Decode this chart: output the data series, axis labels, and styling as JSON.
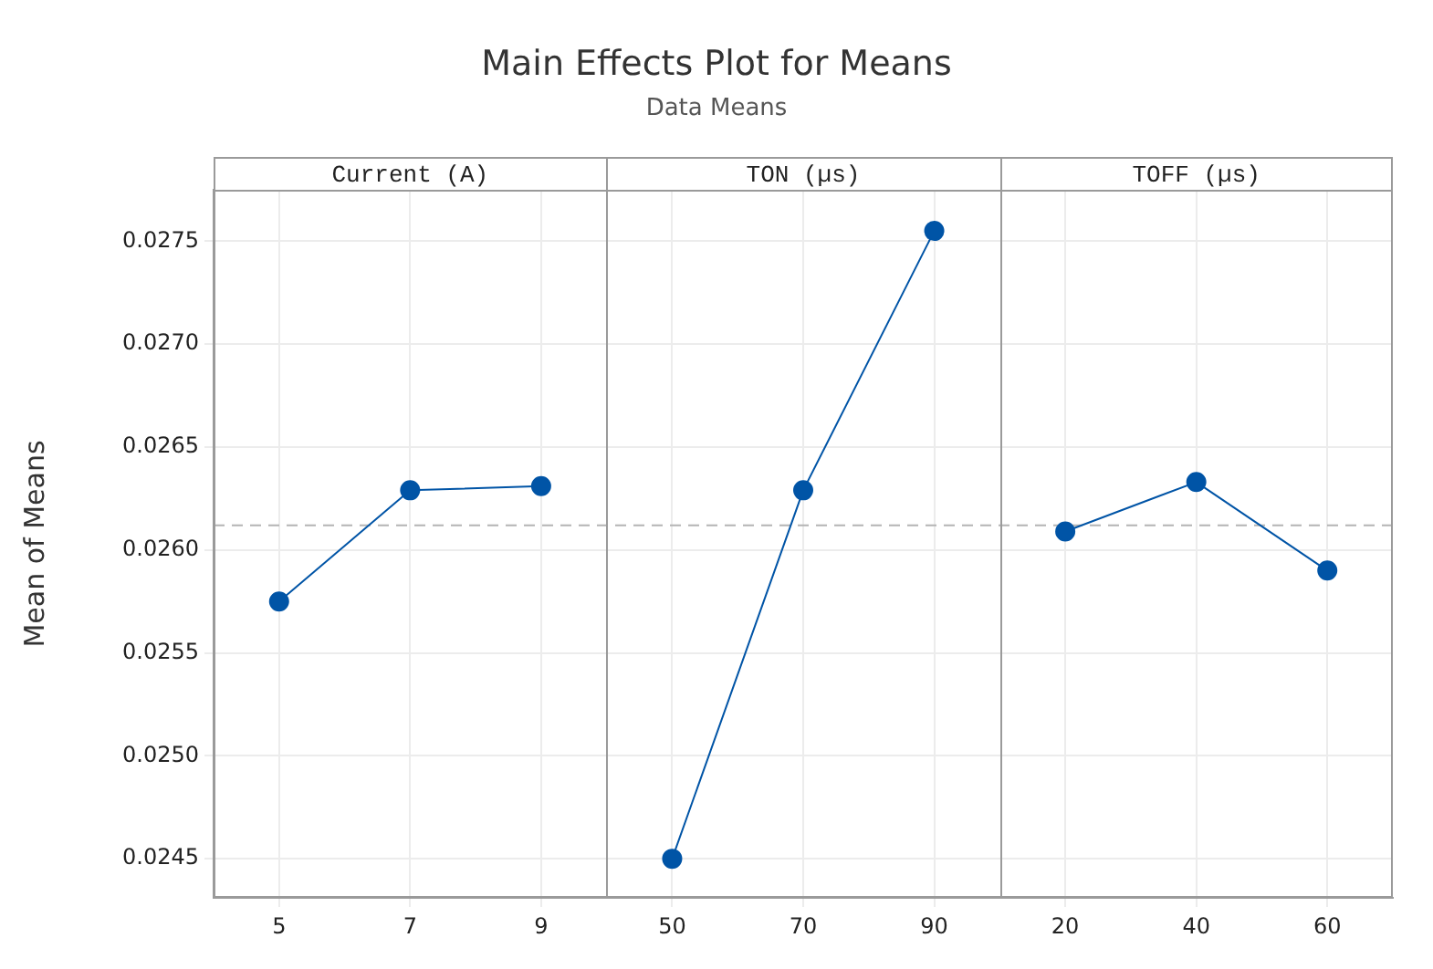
{
  "chart_data": {
    "type": "line",
    "title": "Main Effects Plot for Means",
    "subtitle": "Data Means",
    "ylabel": "Mean of Means",
    "annotations": [
      "Current (A)",
      "TON (µs)",
      "TOFF (µs)"
    ],
    "categories": [
      "5",
      "7",
      "9",
      "50",
      "70",
      "90",
      "20",
      "40",
      "60"
    ],
    "series": [
      {
        "color": "#0054a6",
        "values": [
          0.02575,
          0.02629,
          0.02631,
          null,
          null,
          null,
          null,
          null,
          null
        ]
      },
      {
        "color": "#0054a6",
        "values": [
          null,
          null,
          null,
          0.0245,
          0.02629,
          0.02755,
          null,
          null,
          null
        ]
      },
      {
        "color": "#0054a6",
        "values": [
          null,
          null,
          null,
          null,
          null,
          null,
          0.02609,
          0.02633,
          0.0259
        ]
      }
    ],
    "ylim": [
      0.02431,
      0.02775
    ],
    "yticks": [
      0.0245,
      {
        "value": 0.025,
        "label": "0.0250"
      },
      0.0255,
      {
        "value": 0.026,
        "label": "0.0260"
      },
      0.0265,
      {
        "value": 0.027,
        "label": "0.0270"
      },
      0.0275
    ],
    "ref_lines": [
      {
        "axis": "y",
        "value": 0.02612,
        "color": "#b4b4b4",
        "line_style": "dashed"
      }
    ],
    "grid": true,
    "marker": "circle",
    "line_style": "solid",
    "legend": false
  }
}
